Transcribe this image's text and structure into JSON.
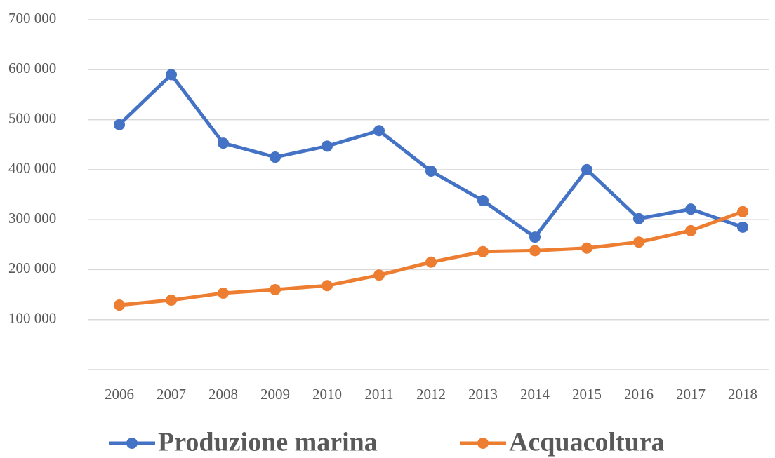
{
  "chart_data": {
    "type": "line",
    "categories": [
      "2006",
      "2007",
      "2008",
      "2009",
      "2010",
      "2011",
      "2012",
      "2013",
      "2014",
      "2015",
      "2016",
      "2017",
      "2018"
    ],
    "series": [
      {
        "name": "Produzione marina",
        "color": "#4472c4",
        "values": [
          490000,
          590000,
          453000,
          425000,
          447000,
          478000,
          397000,
          338000,
          265000,
          400000,
          302000,
          321000,
          285000
        ]
      },
      {
        "name": "Acquacoltura",
        "color": "#ed7d31",
        "values": [
          129000,
          139000,
          153000,
          160000,
          168000,
          189000,
          215000,
          236000,
          238000,
          243000,
          255000,
          278000,
          316000
        ]
      }
    ],
    "ylim": [
      0,
      700000
    ],
    "yticks": [
      {
        "value": 100000,
        "label": "100 000"
      },
      {
        "value": 200000,
        "label": "200 000"
      },
      {
        "value": 300000,
        "label": "300 000"
      },
      {
        "value": 400000,
        "label": "400 000"
      },
      {
        "value": 500000,
        "label": "500 000"
      },
      {
        "value": 600000,
        "label": "600 000"
      },
      {
        "value": 700000,
        "label": "700 000"
      }
    ],
    "grid": true,
    "legend": "bottom"
  }
}
